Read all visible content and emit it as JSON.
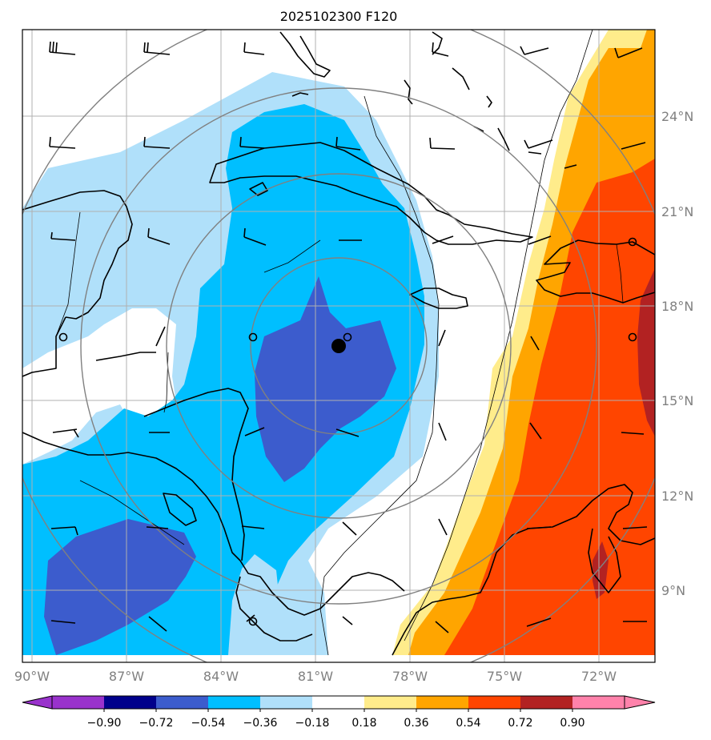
{
  "title": "2025102300 F120",
  "lat_labels": [
    "24°N",
    "21°N",
    "18°N",
    "15°N",
    "12°N",
    "9°N"
  ],
  "lon_labels": [
    "90°W",
    "87°W",
    "84°W",
    "81°W",
    "78°W",
    "75°W",
    "72°W"
  ],
  "colorbar": {
    "ticks": [
      "−0.90",
      "−0.72",
      "−0.54",
      "−0.36",
      "−0.18",
      "0.18",
      "0.36",
      "0.54",
      "0.72",
      "0.90"
    ],
    "colors": [
      "#9932cc",
      "#00008b",
      "#3c5ccd",
      "#00bfff",
      "#b0e0fa",
      "#ffffff",
      "#ffec8b",
      "#ffa500",
      "#ff4500",
      "#b22222",
      "#ff82ab"
    ]
  },
  "map": {
    "center_marker": "storm-center",
    "lon_range": [
      -90.3,
      -70.2
    ],
    "lat_range": [
      7.0,
      26.5
    ],
    "colors": {
      "grid": "#b0b0b0",
      "range_rings": "#808080",
      "coast": "#000000"
    }
  }
}
